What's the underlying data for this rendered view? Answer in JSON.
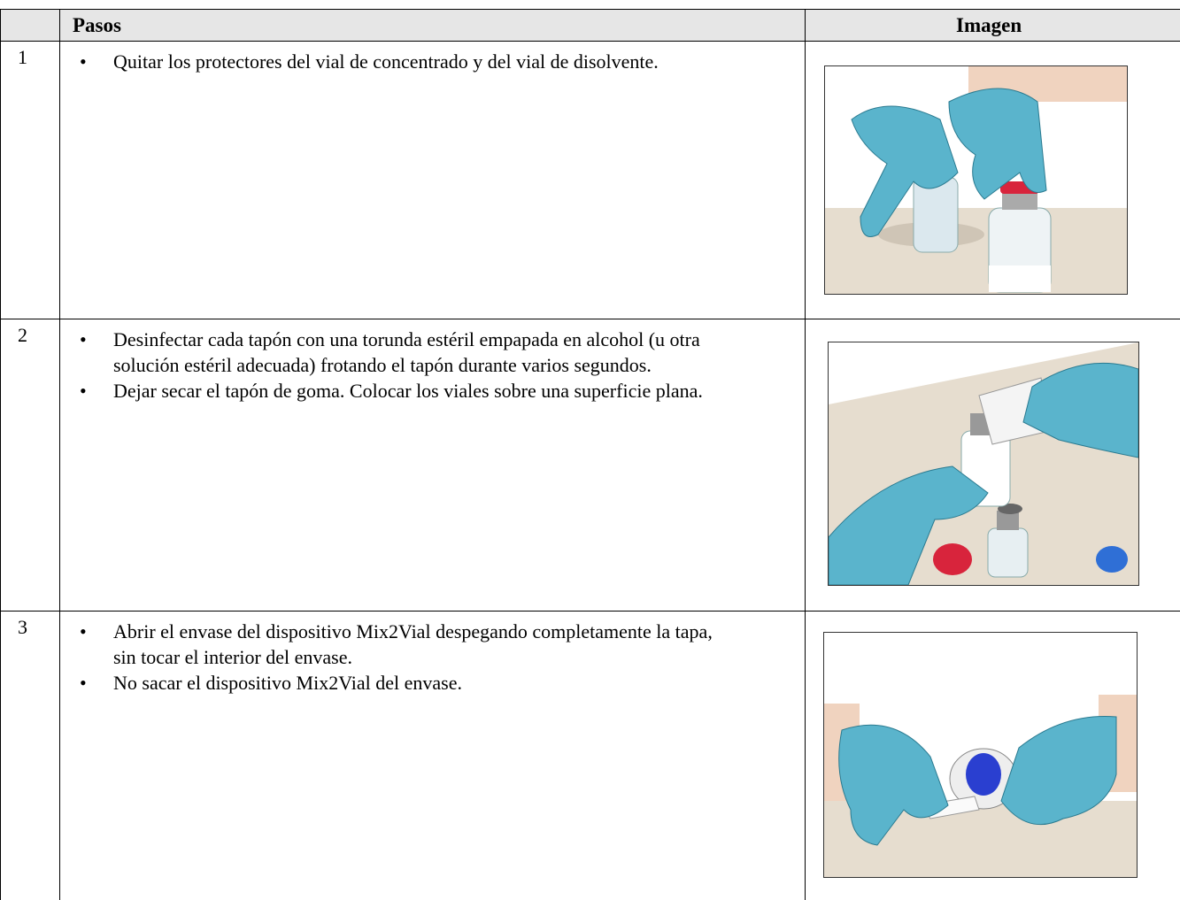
{
  "table": {
    "header": [
      "Pasos",
      "Imagen"
    ],
    "rows": [
      {
        "number": "1",
        "steps": [
          "Quitar los protectores del vial de concentrado y del vial de disolvente."
        ]
      },
      {
        "number": "2",
        "steps": [
          "Desinfectar cada tapón con una torunda estéril empapada en alcohol (u otra solución estéril adecuada) frotando el tapón durante varios segundos.",
          "Dejar secar el tapón de goma. Colocar los viales sobre una superficie plana."
        ]
      },
      {
        "number": "3",
        "steps": [
          "Abrir el envase del dispositivo Mix2Vial despegando completamente la tapa, sin tocar el interior del envase.",
          "No sacar el dispositivo Mix2Vial del envase."
        ]
      }
    ]
  }
}
